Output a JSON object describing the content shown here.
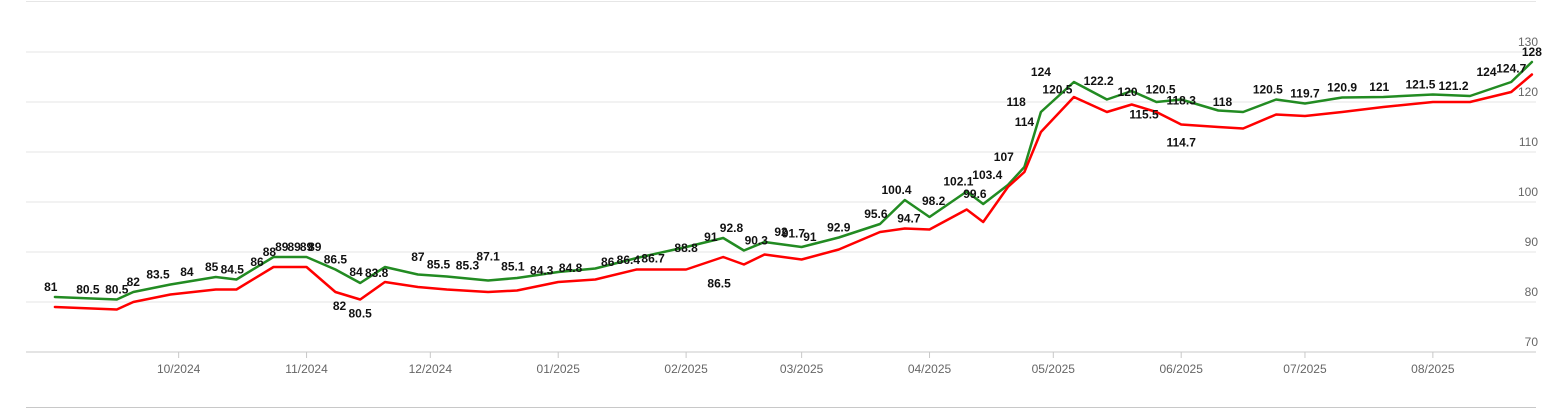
{
  "chart_data": {
    "type": "line",
    "title": "",
    "xlabel": "",
    "ylabel": "",
    "ylim": [
      70,
      130
    ],
    "y_ticks": [
      70,
      80,
      90,
      100,
      110,
      120,
      130
    ],
    "y_axis_side": "right",
    "x_ticks": [
      "10/2024",
      "11/2024",
      "12/2024",
      "01/2025",
      "02/2025",
      "03/2025",
      "04/2025",
      "05/2025",
      "06/2025",
      "07/2025",
      "08/2025"
    ],
    "grid": true,
    "legend": "none",
    "series": [
      {
        "color": "#228B22",
        "x": [
          "2024-09-01",
          "2024-09-16",
          "2024-09-20",
          "2024-09-29",
          "2024-10-10",
          "2024-10-15",
          "2024-10-24",
          "2024-11-01",
          "2024-11-08",
          "2024-11-14",
          "2024-11-20",
          "2024-11-28",
          "2024-12-05",
          "2024-12-15",
          "2024-12-22",
          "2025-01-01",
          "2025-01-10",
          "2025-01-20",
          "2025-02-01",
          "2025-02-10",
          "2025-02-15",
          "2025-02-20",
          "2025-03-01",
          "2025-03-10",
          "2025-03-20",
          "2025-03-26",
          "2025-04-01",
          "2025-04-10",
          "2025-04-14",
          "2025-04-20",
          "2025-04-24",
          "2025-04-28",
          "2025-05-06",
          "2025-05-14",
          "2025-05-20",
          "2025-05-26",
          "2025-06-01",
          "2025-06-10",
          "2025-06-16",
          "2025-06-24",
          "2025-07-01",
          "2025-07-10",
          "2025-07-20",
          "2025-08-01",
          "2025-08-10",
          "2025-08-20",
          "2025-08-25"
        ],
        "y": [
          81,
          80.5,
          82,
          83.5,
          85,
          84.5,
          89,
          89,
          86.5,
          83.8,
          87,
          85.5,
          85.1,
          84.3,
          84.8,
          86,
          86.7,
          88.8,
          91,
          92.8,
          90.3,
          92,
          91,
          92.9,
          95.6,
          100.4,
          97,
          102.1,
          99.6,
          103.4,
          107,
          118,
          124,
          120.5,
          122.2,
          120,
          120.5,
          118.3,
          118,
          120.5,
          119.7,
          120.9,
          121,
          121.5,
          121.2,
          124,
          128
        ]
      },
      {
        "color": "#ff0000",
        "x": [
          "2024-09-01",
          "2024-09-16",
          "2024-09-20",
          "2024-09-29",
          "2024-10-10",
          "2024-10-15",
          "2024-10-24",
          "2024-11-01",
          "2024-11-08",
          "2024-11-14",
          "2024-11-20",
          "2024-11-28",
          "2024-12-05",
          "2024-12-15",
          "2024-12-22",
          "2025-01-01",
          "2025-01-10",
          "2025-01-20",
          "2025-02-01",
          "2025-02-10",
          "2025-02-15",
          "2025-02-20",
          "2025-03-01",
          "2025-03-10",
          "2025-03-20",
          "2025-03-26",
          "2025-04-01",
          "2025-04-10",
          "2025-04-14",
          "2025-04-20",
          "2025-04-24",
          "2025-04-28",
          "2025-05-06",
          "2025-05-14",
          "2025-05-20",
          "2025-05-26",
          "2025-06-01",
          "2025-06-10",
          "2025-06-16",
          "2025-06-24",
          "2025-07-01",
          "2025-07-10",
          "2025-07-20",
          "2025-08-01",
          "2025-08-10",
          "2025-08-20",
          "2025-08-25"
        ],
        "y": [
          79,
          78.5,
          80,
          81.5,
          82.5,
          82.5,
          87,
          87,
          82,
          80.5,
          84,
          83,
          82.5,
          82,
          82.3,
          84,
          84.5,
          86.5,
          86.5,
          89,
          87.5,
          89.5,
          88.5,
          90.5,
          94,
          94.7,
          94.5,
          98.5,
          96,
          103,
          106,
          114,
          121,
          118,
          119.5,
          118,
          115.5,
          115,
          114.7,
          117.5,
          117.2,
          118,
          119,
          120,
          120,
          122,
          125.5
        ]
      }
    ],
    "annotations": [
      {
        "text": "81",
        "x": "2024-08-31",
        "y": 81,
        "pos": "above"
      },
      {
        "text": "80.5",
        "x": "2024-09-09",
        "y": 80.5,
        "pos": "above"
      },
      {
        "text": "80.5",
        "x": "2024-09-16",
        "y": 80.5,
        "pos": "above"
      },
      {
        "text": "82",
        "x": "2024-09-20",
        "y": 82,
        "pos": "above"
      },
      {
        "text": "83.5",
        "x": "2024-09-26",
        "y": 83.5,
        "pos": "above"
      },
      {
        "text": "84",
        "x": "2024-10-03",
        "y": 84,
        "pos": "above"
      },
      {
        "text": "85",
        "x": "2024-10-09",
        "y": 85,
        "pos": "above"
      },
      {
        "text": "84.5",
        "x": "2024-10-14",
        "y": 84.5,
        "pos": "above"
      },
      {
        "text": "86",
        "x": "2024-10-20",
        "y": 86,
        "pos": "above"
      },
      {
        "text": "88",
        "x": "2024-10-23",
        "y": 88,
        "pos": "above"
      },
      {
        "text": "89",
        "x": "2024-10-26",
        "y": 89,
        "pos": "above"
      },
      {
        "text": "89",
        "x": "2024-10-29",
        "y": 89,
        "pos": "above"
      },
      {
        "text": "89",
        "x": "2024-11-01",
        "y": 89,
        "pos": "above"
      },
      {
        "text": "89",
        "x": "2024-11-03",
        "y": 89,
        "pos": "above"
      },
      {
        "text": "86.5",
        "x": "2024-11-08",
        "y": 86.5,
        "pos": "above"
      },
      {
        "text": "82",
        "x": "2024-11-09",
        "y": 82,
        "pos": "below"
      },
      {
        "text": "84",
        "x": "2024-11-13",
        "y": 84,
        "pos": "above"
      },
      {
        "text": "80.5",
        "x": "2024-11-14",
        "y": 80.5,
        "pos": "below"
      },
      {
        "text": "83.8",
        "x": "2024-11-18",
        "y": 83.8,
        "pos": "above"
      },
      {
        "text": "87",
        "x": "2024-11-28",
        "y": 87,
        "pos": "above"
      },
      {
        "text": "85.5",
        "x": "2024-12-03",
        "y": 85.5,
        "pos": "above"
      },
      {
        "text": "85.3",
        "x": "2024-12-10",
        "y": 85.3,
        "pos": "above"
      },
      {
        "text": "87.1",
        "x": "2024-12-15",
        "y": 87.1,
        "pos": "above"
      },
      {
        "text": "85.1",
        "x": "2024-12-21",
        "y": 85.1,
        "pos": "above"
      },
      {
        "text": "84.3",
        "x": "2024-12-28",
        "y": 84.3,
        "pos": "above"
      },
      {
        "text": "84.8",
        "x": "2025-01-04",
        "y": 84.8,
        "pos": "above"
      },
      {
        "text": "86",
        "x": "2025-01-13",
        "y": 86,
        "pos": "above"
      },
      {
        "text": "86.4",
        "x": "2025-01-18",
        "y": 86.4,
        "pos": "above"
      },
      {
        "text": "86.7",
        "x": "2025-01-24",
        "y": 86.7,
        "pos": "above"
      },
      {
        "text": "88.8",
        "x": "2025-02-01",
        "y": 88.8,
        "pos": "above"
      },
      {
        "text": "91",
        "x": "2025-02-07",
        "y": 91,
        "pos": "above"
      },
      {
        "text": "86.5",
        "x": "2025-02-09",
        "y": 86.5,
        "pos": "below"
      },
      {
        "text": "92.8",
        "x": "2025-02-12",
        "y": 92.8,
        "pos": "above"
      },
      {
        "text": "90.3",
        "x": "2025-02-18",
        "y": 90.3,
        "pos": "above"
      },
      {
        "text": "92",
        "x": "2025-02-24",
        "y": 92,
        "pos": "above"
      },
      {
        "text": "91.7",
        "x": "2025-02-27",
        "y": 91.7,
        "pos": "above"
      },
      {
        "text": "91",
        "x": "2025-03-03",
        "y": 91,
        "pos": "above"
      },
      {
        "text": "92.9",
        "x": "2025-03-10",
        "y": 92.9,
        "pos": "above"
      },
      {
        "text": "95.6",
        "x": "2025-03-19",
        "y": 95.6,
        "pos": "above"
      },
      {
        "text": "100.4",
        "x": "2025-03-24",
        "y": 100.4,
        "pos": "above"
      },
      {
        "text": "94.7",
        "x": "2025-03-27",
        "y": 94.7,
        "pos": "above"
      },
      {
        "text": "98.2",
        "x": "2025-04-02",
        "y": 98.2,
        "pos": "above"
      },
      {
        "text": "102.1",
        "x": "2025-04-08",
        "y": 102.1,
        "pos": "above"
      },
      {
        "text": "99.6",
        "x": "2025-04-12",
        "y": 99.6,
        "pos": "above"
      },
      {
        "text": "103.4",
        "x": "2025-04-15",
        "y": 103.4,
        "pos": "above"
      },
      {
        "text": "107",
        "x": "2025-04-19",
        "y": 107,
        "pos": "above"
      },
      {
        "text": "118",
        "x": "2025-04-22",
        "y": 118,
        "pos": "above"
      },
      {
        "text": "114",
        "x": "2025-04-24",
        "y": 114,
        "pos": "above"
      },
      {
        "text": "124",
        "x": "2025-04-28",
        "y": 124,
        "pos": "above"
      },
      {
        "text": "120.5",
        "x": "2025-05-02",
        "y": 120.5,
        "pos": "above"
      },
      {
        "text": "122.2",
        "x": "2025-05-12",
        "y": 122.2,
        "pos": "above"
      },
      {
        "text": "120",
        "x": "2025-05-19",
        "y": 120,
        "pos": "above"
      },
      {
        "text": "115.5",
        "x": "2025-05-23",
        "y": 115.5,
        "pos": "above"
      },
      {
        "text": "120.5",
        "x": "2025-05-27",
        "y": 120.5,
        "pos": "above"
      },
      {
        "text": "118.3",
        "x": "2025-06-01",
        "y": 118.3,
        "pos": "above"
      },
      {
        "text": "114.7",
        "x": "2025-06-01",
        "y": 114.7,
        "pos": "below"
      },
      {
        "text": "118",
        "x": "2025-06-11",
        "y": 118,
        "pos": "above"
      },
      {
        "text": "120.5",
        "x": "2025-06-22",
        "y": 120.5,
        "pos": "above"
      },
      {
        "text": "119.7",
        "x": "2025-07-01",
        "y": 119.7,
        "pos": "above"
      },
      {
        "text": "120.9",
        "x": "2025-07-10",
        "y": 120.9,
        "pos": "above"
      },
      {
        "text": "121",
        "x": "2025-07-19",
        "y": 121,
        "pos": "above"
      },
      {
        "text": "121.5",
        "x": "2025-07-29",
        "y": 121.5,
        "pos": "above"
      },
      {
        "text": "121.2",
        "x": "2025-08-06",
        "y": 121.2,
        "pos": "above"
      },
      {
        "text": "124",
        "x": "2025-08-14",
        "y": 124,
        "pos": "above"
      },
      {
        "text": "124.7",
        "x": "2025-08-20",
        "y": 124.7,
        "pos": "above"
      },
      {
        "text": "128",
        "x": "2025-08-25",
        "y": 128,
        "pos": "above"
      }
    ]
  }
}
